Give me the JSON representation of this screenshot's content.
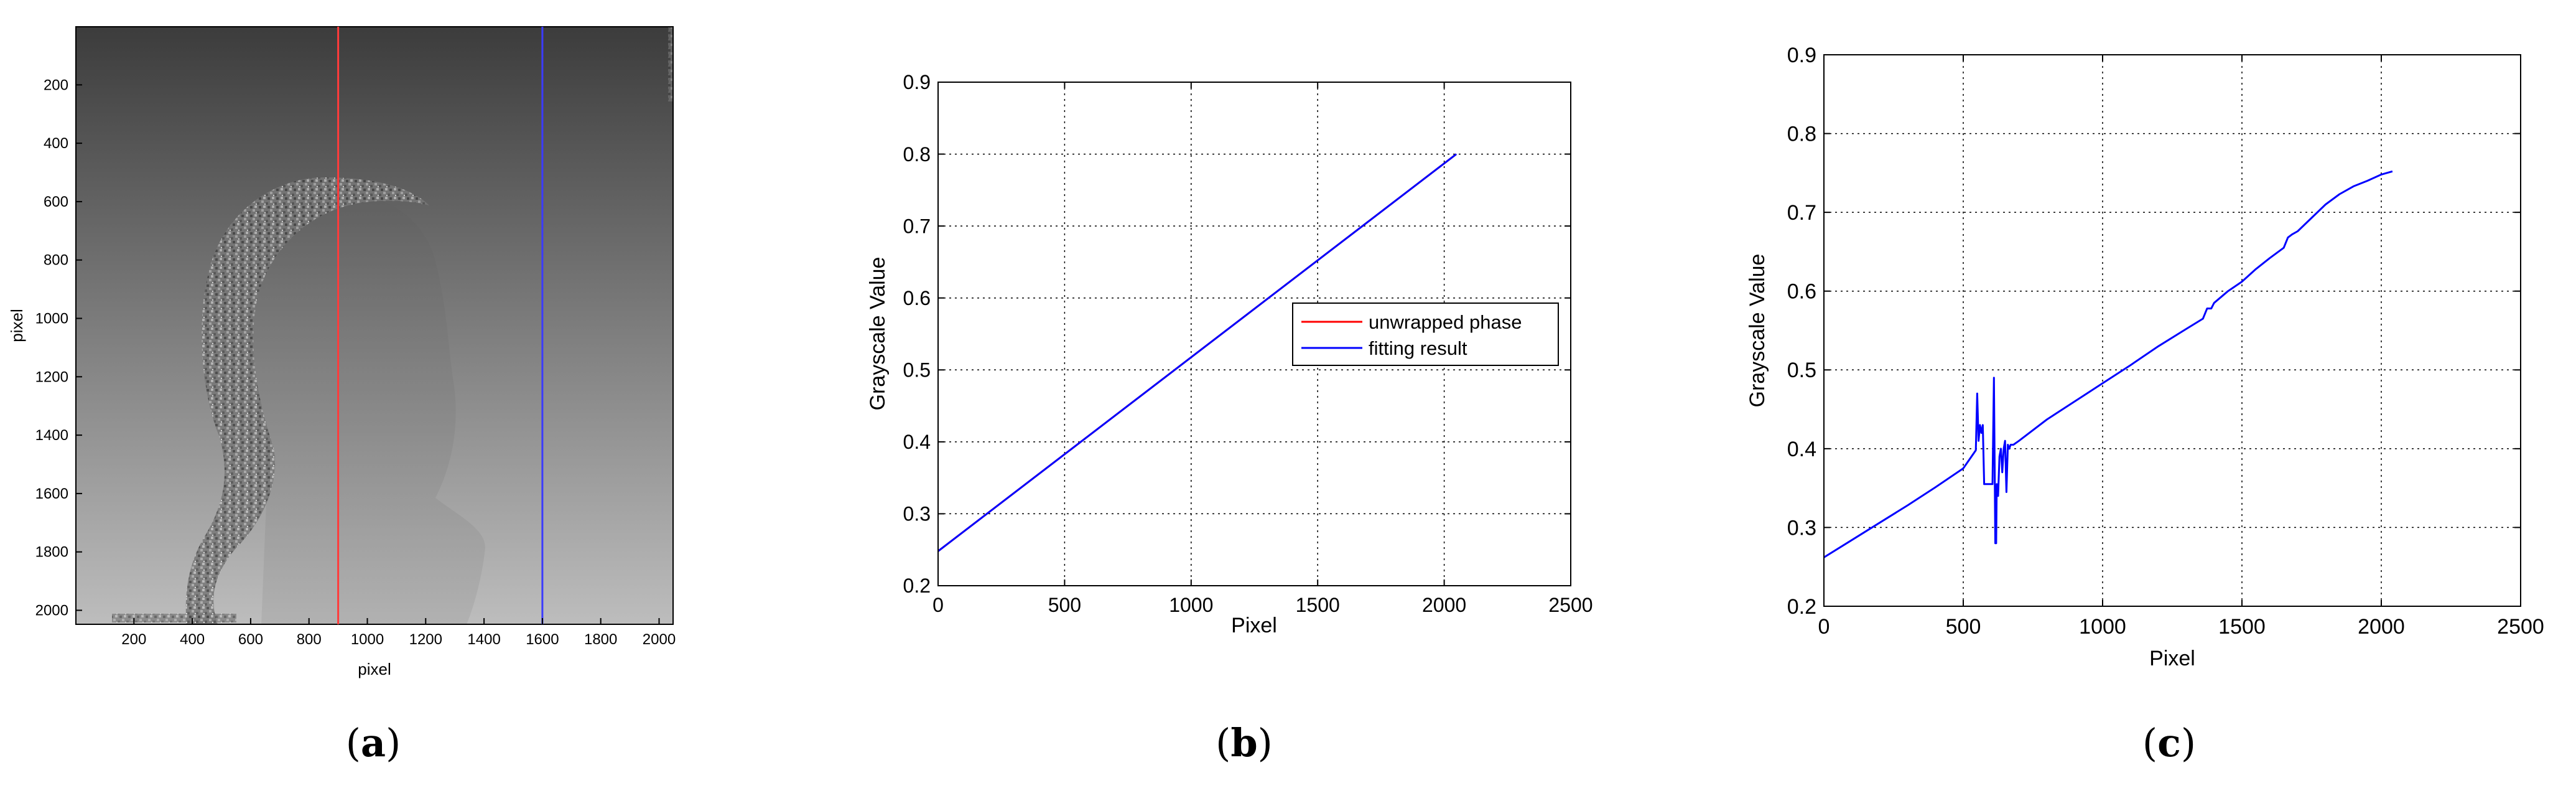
{
  "chart_data": [
    {
      "id": "a",
      "type": "heatmap",
      "caption_letter": "a",
      "xlabel": "pixel",
      "ylabel": "pixel",
      "xlim": [
        1,
        2048
      ],
      "ylim": [
        2048,
        1
      ],
      "x_ticks": [
        200,
        400,
        600,
        800,
        1000,
        1200,
        1400,
        1600,
        1800,
        2000
      ],
      "y_ticks": [
        200,
        400,
        600,
        800,
        1000,
        1200,
        1400,
        1600,
        1800,
        2000
      ],
      "grid": false,
      "colormap": "gray",
      "marker_lines": [
        {
          "x": 900,
          "color": "#ff3b3b"
        },
        {
          "x": 1600,
          "color": "#3b3bff"
        }
      ]
    },
    {
      "id": "b",
      "type": "line",
      "caption_letter": "b",
      "xlabel": "Pixel",
      "ylabel": "Grayscale Value",
      "xlim": [
        0,
        2500
      ],
      "ylim": [
        0.2,
        0.9
      ],
      "x_ticks": [
        0,
        500,
        1000,
        1500,
        2000,
        2500
      ],
      "y_ticks": [
        0.2,
        0.3,
        0.4,
        0.5,
        0.6,
        0.7,
        0.8,
        0.9
      ],
      "grid": true,
      "legend_position": "center-right",
      "series": [
        {
          "name": "unwrapped phase",
          "color": "#ff0000",
          "x": [
            0,
            2048
          ],
          "y": [
            0.248,
            0.8
          ]
        },
        {
          "name": "fitting result",
          "color": "#0000ff",
          "x": [
            0,
            2048
          ],
          "y": [
            0.248,
            0.8
          ]
        }
      ]
    },
    {
      "id": "c",
      "type": "line",
      "caption_letter": "c",
      "xlabel": "Pixel",
      "ylabel": "Grayscale Value",
      "xlim": [
        0,
        2500
      ],
      "ylim": [
        0.2,
        0.9
      ],
      "x_ticks": [
        0,
        500,
        1000,
        1500,
        2000,
        2500
      ],
      "y_ticks": [
        0.2,
        0.3,
        0.4,
        0.5,
        0.6,
        0.7,
        0.8,
        0.9
      ],
      "grid": true,
      "series": [
        {
          "color": "#0000ff",
          "x": [
            0,
            100,
            200,
            300,
            400,
            500,
            545,
            550,
            555,
            560,
            565,
            570,
            575,
            580,
            590,
            600,
            605,
            610,
            615,
            618,
            620,
            625,
            630,
            635,
            640,
            645,
            650,
            655,
            660,
            665,
            670,
            680,
            700,
            800,
            900,
            1000,
            1100,
            1200,
            1300,
            1360,
            1375,
            1390,
            1400,
            1450,
            1500,
            1550,
            1600,
            1650,
            1665,
            1680,
            1700,
            1750,
            1800,
            1850,
            1900,
            1950,
            2000,
            2040
          ],
          "y": [
            0.262,
            0.284,
            0.306,
            0.328,
            0.351,
            0.375,
            0.398,
            0.47,
            0.41,
            0.43,
            0.42,
            0.43,
            0.355,
            0.355,
            0.355,
            0.355,
            0.355,
            0.49,
            0.28,
            0.28,
            0.355,
            0.34,
            0.39,
            0.4,
            0.37,
            0.4,
            0.41,
            0.345,
            0.405,
            0.4,
            0.405,
            0.405,
            0.41,
            0.437,
            0.46,
            0.483,
            0.506,
            0.53,
            0.552,
            0.565,
            0.578,
            0.578,
            0.585,
            0.6,
            0.612,
            0.628,
            0.642,
            0.655,
            0.668,
            0.672,
            0.676,
            0.693,
            0.71,
            0.723,
            0.733,
            0.74,
            0.748,
            0.752
          ]
        }
      ]
    }
  ]
}
